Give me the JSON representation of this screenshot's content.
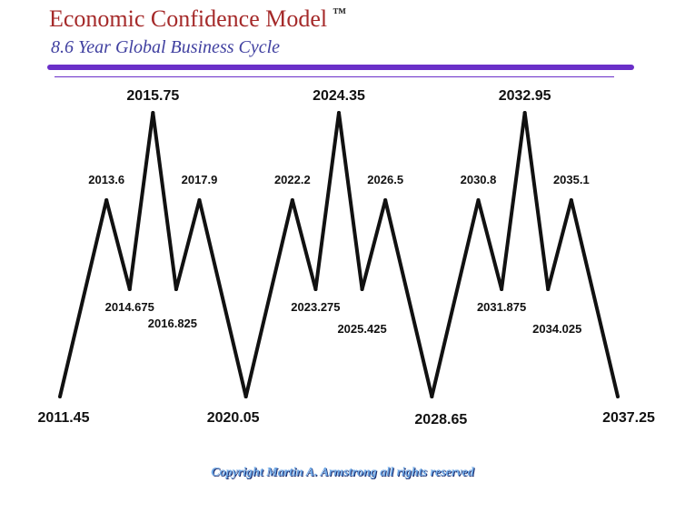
{
  "header": {
    "title": "Economic Confidence Model",
    "trademark": "™",
    "subtitle": "8.6 Year Global Business Cycle"
  },
  "footer": {
    "copyright": "Copyright Martin A. Armstrong all rights reserved"
  },
  "colors": {
    "title": "#a52a2a",
    "subtitle": "#4040a0",
    "rule": "#6a2fc8",
    "line": "#111111",
    "copyright": "#6fa8e6"
  },
  "chart_data": {
    "type": "line",
    "title": "Economic Confidence Model",
    "subtitle": "8.6 Year Global Business Cycle",
    "grid": false,
    "legend": "none",
    "points": [
      {
        "label": "2011.45",
        "x": 2011.45,
        "kind": "major-low"
      },
      {
        "label": "2013.6",
        "x": 2013.6,
        "kind": "minor-high"
      },
      {
        "label": "2014.675",
        "x": 2014.675,
        "kind": "minor-low"
      },
      {
        "label": "2015.75",
        "x": 2015.75,
        "kind": "major-high"
      },
      {
        "label": "2016.825",
        "x": 2016.825,
        "kind": "minor-low"
      },
      {
        "label": "2017.9",
        "x": 2017.9,
        "kind": "minor-high"
      },
      {
        "label": "2020.05",
        "x": 2020.05,
        "kind": "major-low"
      },
      {
        "label": "2022.2",
        "x": 2022.2,
        "kind": "minor-high"
      },
      {
        "label": "2023.275",
        "x": 2023.275,
        "kind": "minor-low"
      },
      {
        "label": "2024.35",
        "x": 2024.35,
        "kind": "major-high"
      },
      {
        "label": "2025.425",
        "x": 2025.425,
        "kind": "minor-low"
      },
      {
        "label": "2026.5",
        "x": 2026.5,
        "kind": "minor-high"
      },
      {
        "label": "2028.65",
        "x": 2028.65,
        "kind": "major-low"
      },
      {
        "label": "2030.8",
        "x": 2030.8,
        "kind": "minor-high"
      },
      {
        "label": "2031.875",
        "x": 2031.875,
        "kind": "minor-low"
      },
      {
        "label": "2032.95",
        "x": 2032.95,
        "kind": "major-high"
      },
      {
        "label": "2034.025",
        "x": 2034.025,
        "kind": "minor-low"
      },
      {
        "label": "2035.1",
        "x": 2035.1,
        "kind": "minor-high"
      },
      {
        "label": "2037.25",
        "x": 2037.25,
        "kind": "major-low"
      }
    ]
  }
}
